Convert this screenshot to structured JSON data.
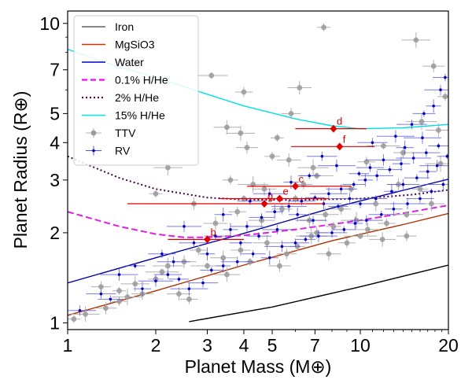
{
  "chart_data": {
    "type": "scatter",
    "xlabel": "Planet Mass (M⊕)",
    "ylabel": "Planet Radius (R⊕)",
    "xscale": "log",
    "yscale": "log",
    "xlim": [
      1,
      20
    ],
    "ylim": [
      0.95,
      11
    ],
    "xticks": [
      1,
      2,
      3,
      4,
      5,
      7,
      10,
      20
    ],
    "yticks": [
      1,
      2,
      3,
      4,
      5,
      7,
      10
    ],
    "grid": false,
    "legend_position": "top-left",
    "legend": [
      {
        "label": "Iron",
        "style": "line",
        "color": "#606060"
      },
      {
        "label": "MgSiO3",
        "style": "line",
        "color": "#d03000"
      },
      {
        "label": "Water",
        "style": "line",
        "color": "#0000cc"
      },
      {
        "label": "0.1% H/He",
        "style": "dashed",
        "color": "#ff00ff"
      },
      {
        "label": "2% H/He",
        "style": "dotted",
        "color": "#5a0050"
      },
      {
        "label": "15% H/He",
        "style": "line",
        "color": "#00e8e8"
      },
      {
        "label": "TTV",
        "style": "marker",
        "color": "#999999"
      },
      {
        "label": "RV",
        "style": "marker",
        "color": "#1010c8"
      }
    ],
    "curves": [
      {
        "name": "Iron",
        "color": "#000000",
        "dash": "",
        "x": [
          2.6,
          5,
          10,
          20
        ],
        "y": [
          1.01,
          1.13,
          1.32,
          1.56
        ]
      },
      {
        "name": "MgSiO3",
        "color": "#b03000",
        "dash": "",
        "x": [
          1,
          2,
          4,
          8,
          14,
          20
        ],
        "y": [
          1.06,
          1.28,
          1.56,
          1.88,
          2.13,
          2.32
        ]
      },
      {
        "name": "Water",
        "color": "#0000aa",
        "dash": "",
        "x": [
          1,
          2,
          4,
          8,
          14,
          20
        ],
        "y": [
          1.36,
          1.65,
          1.99,
          2.42,
          2.77,
          3.02
        ]
      },
      {
        "name": "0.1% H/He",
        "color": "#e020e0",
        "dash": "8,4",
        "x": [
          1,
          1.5,
          2,
          2.5,
          3,
          4,
          6,
          10,
          15,
          20
        ],
        "y": [
          2.35,
          2.1,
          1.98,
          1.93,
          1.93,
          1.96,
          2.05,
          2.2,
          2.35,
          2.47
        ]
      },
      {
        "name": "2% H/He",
        "color": "#4a0040",
        "dash": "2,3",
        "x": [
          1,
          1.5,
          2,
          3,
          4,
          6,
          10,
          15,
          20
        ],
        "y": [
          3.6,
          3.05,
          2.8,
          2.62,
          2.58,
          2.57,
          2.6,
          2.68,
          2.78
        ]
      },
      {
        "name": "15% H/He",
        "color": "#00e0e0",
        "dash": "",
        "x": [
          1,
          1.5,
          2,
          3,
          4,
          6,
          8,
          10,
          14,
          20
        ],
        "y": [
          8.2,
          7.15,
          6.6,
          5.8,
          5.3,
          4.8,
          4.55,
          4.45,
          4.48,
          4.6
        ]
      }
    ],
    "highlighted_planets": [
      {
        "label": "b",
        "mass": 3.0,
        "mass_lo": 2.2,
        "mass_hi": 4.0,
        "radius": 1.9
      },
      {
        "label": "g",
        "mass": 4.7,
        "mass_lo": 1.6,
        "mass_hi": 7.5,
        "radius": 2.5
      },
      {
        "label": "c",
        "mass": 6.0,
        "mass_lo": 4.1,
        "mass_hi": 9.3,
        "radius": 2.86
      },
      {
        "label": "e",
        "mass": 5.3,
        "mass_lo": 3.3,
        "mass_hi": 7.8,
        "radius": 2.6
      },
      {
        "label": "d",
        "mass": 8.1,
        "mass_lo": 6.0,
        "mass_hi": 10.5,
        "radius": 4.45
      },
      {
        "label": "f",
        "mass": 8.5,
        "mass_lo": 5.8,
        "mass_hi": 11.2,
        "radius": 3.88
      }
    ],
    "ttv_points": [
      [
        7.5,
        9.7
      ],
      [
        15.5,
        8.8
      ],
      [
        17.8,
        7.2
      ],
      [
        19.5,
        5.7
      ],
      [
        16.2,
        4.7
      ],
      [
        6.2,
        6.1
      ],
      [
        4.0,
        5.9
      ],
      [
        3.1,
        6.7
      ],
      [
        3.5,
        4.5
      ],
      [
        5.8,
        5.0
      ],
      [
        5.2,
        4.15
      ],
      [
        3.9,
        4.3
      ],
      [
        4.1,
        3.85
      ],
      [
        5.0,
        3.6
      ],
      [
        6.9,
        3.3
      ],
      [
        5.7,
        3.5
      ],
      [
        10.5,
        3.45
      ],
      [
        12.0,
        3.9
      ],
      [
        18.5,
        4.4
      ],
      [
        14.0,
        3.7
      ],
      [
        2.0,
        2.7
      ],
      [
        2.2,
        3.3
      ],
      [
        2.7,
        2.5
      ],
      [
        3.6,
        3.0
      ],
      [
        4.3,
        2.9
      ],
      [
        4.7,
        2.8
      ],
      [
        6.4,
        2.9
      ],
      [
        7.1,
        3.1
      ],
      [
        7.6,
        2.3
      ],
      [
        8.6,
        2.4
      ],
      [
        9.3,
        2.8
      ],
      [
        11.3,
        2.5
      ],
      [
        13.5,
        2.9
      ],
      [
        16.0,
        2.8
      ],
      [
        18.8,
        3.4
      ],
      [
        3.2,
        2.15
      ],
      [
        3.8,
        2.35
      ],
      [
        4.0,
        2.6
      ],
      [
        4.6,
        2.2
      ],
      [
        5.4,
        2.4
      ],
      [
        6.0,
        2.6
      ],
      [
        6.7,
        2.2
      ],
      [
        7.1,
        2.0
      ],
      [
        8.1,
        2.1
      ],
      [
        9.7,
        2.2
      ],
      [
        10.6,
        2.05
      ],
      [
        12.3,
        2.15
      ],
      [
        14.4,
        2.3
      ],
      [
        17.5,
        2.5
      ],
      [
        1.3,
        1.32
      ],
      [
        1.5,
        1.28
      ],
      [
        1.7,
        1.35
      ],
      [
        1.8,
        1.25
      ],
      [
        2.0,
        1.4
      ],
      [
        2.2,
        1.55
      ],
      [
        2.5,
        1.6
      ],
      [
        2.8,
        1.75
      ],
      [
        3.0,
        1.55
      ],
      [
        3.4,
        1.65
      ],
      [
        3.9,
        1.75
      ],
      [
        4.2,
        1.6
      ],
      [
        4.8,
        1.85
      ],
      [
        5.3,
        1.55
      ],
      [
        6.1,
        1.8
      ],
      [
        6.8,
        1.95
      ],
      [
        7.8,
        1.7
      ],
      [
        9.0,
        1.85
      ],
      [
        10.0,
        1.95
      ],
      [
        11.9,
        1.9
      ],
      [
        14.4,
        1.95
      ],
      [
        1.05,
        1.03
      ],
      [
        1.15,
        1.07
      ],
      [
        1.35,
        1.12
      ],
      [
        1.5,
        1.18
      ],
      [
        1.6,
        1.22
      ],
      [
        2.4,
        1.25
      ],
      [
        2.6,
        1.2
      ],
      [
        2.1,
        1.48
      ],
      [
        3.5,
        1.45
      ],
      [
        5.6,
        1.7
      ]
    ],
    "rv_points": [
      [
        1.1,
        1.1
      ],
      [
        1.4,
        1.2
      ],
      [
        1.8,
        1.3
      ],
      [
        2.0,
        1.38
      ],
      [
        2.2,
        1.45
      ],
      [
        2.4,
        1.4
      ],
      [
        2.6,
        1.3
      ],
      [
        2.9,
        1.36
      ],
      [
        3.1,
        1.5
      ],
      [
        3.4,
        1.55
      ],
      [
        3.8,
        1.6
      ],
      [
        4.3,
        1.7
      ],
      [
        4.9,
        1.65
      ],
      [
        5.4,
        1.8
      ],
      [
        6.0,
        1.85
      ],
      [
        6.5,
        1.9
      ],
      [
        7.2,
        1.95
      ],
      [
        8.0,
        2.0
      ],
      [
        8.8,
        2.05
      ],
      [
        9.6,
        2.15
      ],
      [
        10.5,
        2.2
      ],
      [
        11.8,
        2.3
      ],
      [
        13.0,
        2.4
      ],
      [
        14.5,
        2.5
      ],
      [
        16.0,
        2.6
      ],
      [
        17.5,
        2.75
      ],
      [
        19.2,
        2.9
      ],
      [
        2.7,
        1.85
      ],
      [
        3.2,
        1.95
      ],
      [
        3.6,
        2.05
      ],
      [
        4.1,
        2.1
      ],
      [
        4.6,
        2.25
      ],
      [
        5.1,
        2.35
      ],
      [
        5.7,
        2.45
      ],
      [
        6.3,
        2.55
      ],
      [
        7.0,
        2.62
      ],
      [
        7.8,
        2.7
      ],
      [
        8.6,
        2.8
      ],
      [
        9.5,
        2.9
      ],
      [
        10.4,
        3.0
      ],
      [
        11.4,
        3.1
      ],
      [
        12.6,
        3.25
      ],
      [
        13.8,
        3.4
      ],
      [
        15.2,
        3.55
      ],
      [
        16.8,
        3.7
      ],
      [
        18.5,
        3.9
      ],
      [
        13.2,
        4.2
      ],
      [
        15.0,
        4.6
      ],
      [
        16.5,
        5.0
      ],
      [
        17.8,
        5.3
      ],
      [
        18.8,
        6.0
      ],
      [
        19.5,
        6.6
      ],
      [
        14.2,
        3.85
      ],
      [
        12.0,
        3.5
      ],
      [
        10.8,
        3.3
      ],
      [
        9.9,
        3.15
      ],
      [
        8.3,
        3.35
      ],
      [
        7.4,
        3.6
      ],
      [
        6.7,
        3.1
      ],
      [
        5.8,
        2.95
      ],
      [
        4.9,
        2.7
      ],
      [
        4.2,
        2.55
      ],
      [
        3.4,
        2.3
      ],
      [
        2.5,
        2.1
      ],
      [
        2.1,
        1.7
      ],
      [
        1.7,
        1.55
      ],
      [
        1.5,
        1.45
      ],
      [
        1.3,
        1.25
      ],
      [
        11.3,
        2.6
      ],
      [
        12.8,
        2.75
      ],
      [
        14.0,
        2.9
      ],
      [
        15.6,
        3.05
      ],
      [
        17.0,
        3.2
      ],
      [
        18.3,
        3.35
      ],
      [
        6.9,
        2.2
      ],
      [
        8.4,
        2.45
      ],
      [
        9.2,
        2.6
      ],
      [
        5.2,
        2.05
      ],
      [
        3.9,
        1.85
      ],
      [
        3.0,
        1.7
      ],
      [
        2.3,
        1.6
      ],
      [
        4.5,
        1.95
      ],
      [
        6.1,
        2.3
      ],
      [
        7.5,
        2.5
      ],
      [
        10.0,
        2.5
      ],
      [
        19.8,
        3.6
      ],
      [
        16.3,
        4.15
      ],
      [
        11.0,
        4.0
      ]
    ]
  }
}
